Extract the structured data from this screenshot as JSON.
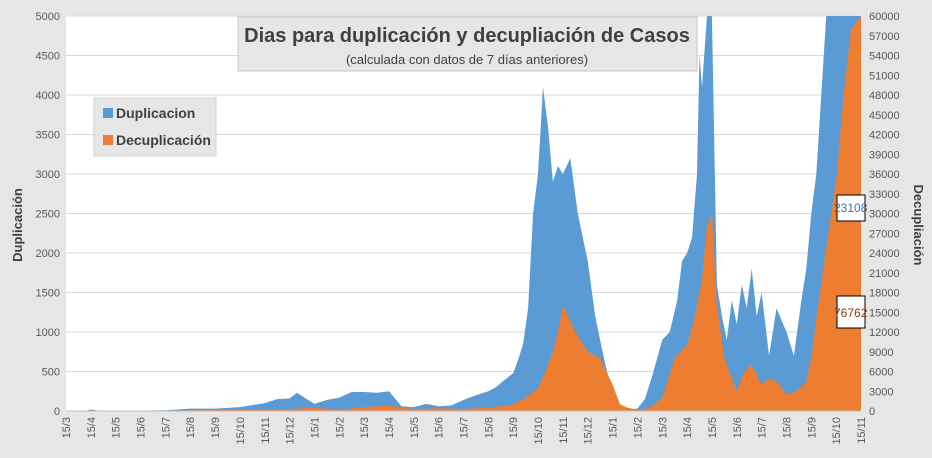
{
  "chart_data": {
    "type": "area",
    "title": "Dias para duplicación y decupliación de Casos",
    "subtitle": "(calculada con datos de 7 días anteriores)",
    "ylabel_left": "Duplicación",
    "ylabel_right": "Decupliación",
    "ylim_left": [
      0,
      5000
    ],
    "ylim_right": [
      0,
      60000
    ],
    "yticks_left": [
      0,
      500,
      1000,
      1500,
      2000,
      2500,
      3000,
      3500,
      4000,
      4500,
      5000
    ],
    "yticks_right": [
      0,
      3000,
      6000,
      9000,
      12000,
      15000,
      18000,
      21000,
      24000,
      27000,
      30000,
      33000,
      36000,
      39000,
      42000,
      45000,
      48000,
      51000,
      54000,
      57000,
      60000
    ],
    "x_labels": [
      "15/3",
      "15/4",
      "15/5",
      "15/6",
      "15/7",
      "15/8",
      "15/9",
      "15/10",
      "15/11",
      "15/12",
      "15/1",
      "15/2",
      "15/3",
      "15/4",
      "15/5",
      "15/6",
      "15/7",
      "15/8",
      "15/9",
      "15/10",
      "15/11",
      "15/12",
      "15/1",
      "15/2",
      "15/3",
      "15/4",
      "15/5",
      "15/6",
      "15/7",
      "15/8",
      "15/9",
      "15/10",
      "15/11"
    ],
    "grid": true,
    "legend_position": "top-left",
    "colors": {
      "duplicacion": "#5b9bd5",
      "decuplicacion": "#ed7d31"
    },
    "series": [
      {
        "name": "Duplicacion",
        "axis": "left",
        "x_index": [
          0,
          0.8,
          1.0,
          1.3,
          2,
          3,
          4,
          5,
          6,
          7,
          8,
          8.5,
          9,
          9.3,
          9.6,
          10,
          10.5,
          11,
          11.5,
          12,
          12.5,
          13,
          13.5,
          14,
          14.5,
          15,
          15.5,
          16,
          16.5,
          17,
          17.3,
          17.6,
          18,
          18.2,
          18.4,
          18.6,
          18.8,
          19,
          19.2,
          19.4,
          19.6,
          19.8,
          20,
          20.3,
          20.6,
          21,
          21.3,
          21.5,
          21.7,
          22,
          22.3,
          22.6,
          23,
          23.3,
          23.6,
          24,
          24.3,
          24.6,
          24.8,
          25,
          25.2,
          25.4,
          25.5,
          25.6,
          25.8,
          26,
          26.2,
          26.4,
          26.6,
          26.8,
          27,
          27.2,
          27.4,
          27.6,
          27.8,
          28,
          28.3,
          28.6,
          29,
          29.3,
          29.6,
          29.8,
          30,
          30.2,
          30.4,
          30.6,
          30.8,
          31,
          31.3,
          31.6,
          32
        ],
        "values": [
          0,
          0,
          20,
          5,
          0,
          5,
          10,
          30,
          30,
          50,
          100,
          150,
          160,
          230,
          170,
          90,
          140,
          170,
          240,
          240,
          230,
          250,
          60,
          50,
          90,
          60,
          70,
          140,
          200,
          250,
          300,
          380,
          480,
          650,
          850,
          1300,
          2500,
          3000,
          4100,
          3600,
          2900,
          3100,
          3000,
          3200,
          2500,
          1900,
          1200,
          900,
          600,
          220,
          50,
          20,
          30,
          150,
          450,
          900,
          1000,
          1400,
          1900,
          2000,
          2200,
          3000,
          4500,
          4100,
          5000,
          5000,
          1600,
          1200,
          900,
          1400,
          1100,
          1600,
          1300,
          1800,
          1200,
          1500,
          700,
          1300,
          1000,
          700,
          1400,
          1800,
          2500,
          3000,
          4000,
          5000,
          5000,
          5000,
          5000,
          5000,
          5000
        ]
      },
      {
        "name": "Decuplicación",
        "axis": "right",
        "x_index": [
          0,
          2,
          4,
          5,
          6,
          7,
          8,
          9,
          10,
          11,
          12,
          13,
          14,
          15,
          16,
          17,
          17.5,
          18,
          18.5,
          19,
          19.3,
          19.6,
          19.8,
          20,
          20.5,
          21,
          21.5,
          22,
          22.3,
          22.6,
          23,
          23.5,
          24,
          24.5,
          25,
          25.3,
          25.6,
          25.8,
          26,
          26.2,
          26.5,
          26.8,
          27,
          27.3,
          27.6,
          28,
          28.3,
          28.6,
          29,
          29.4,
          29.8,
          30,
          30.2,
          30.5,
          30.8,
          31,
          31.3,
          31.6,
          32
        ],
        "values": [
          0,
          0,
          0,
          100,
          200,
          200,
          200,
          300,
          500,
          200,
          600,
          800,
          300,
          400,
          300,
          500,
          700,
          1000,
          2000,
          3500,
          6000,
          9000,
          12000,
          16000,
          12000,
          9000,
          8000,
          4000,
          1000,
          500,
          200,
          500,
          2000,
          8000,
          10000,
          14000,
          20000,
          28000,
          30000,
          16000,
          8000,
          5000,
          3000,
          6000,
          7000,
          4000,
          5000,
          4500,
          2500,
          3000,
          4500,
          8000,
          14000,
          22000,
          30000,
          35000,
          48000,
          58000,
          60000
        ]
      }
    ],
    "annotations": [
      {
        "text": "23108",
        "series": "Duplicacion",
        "color": "#2e75b6"
      },
      {
        "text": "76762",
        "series": "Decuplicación",
        "color": "#843c0c"
      }
    ]
  }
}
